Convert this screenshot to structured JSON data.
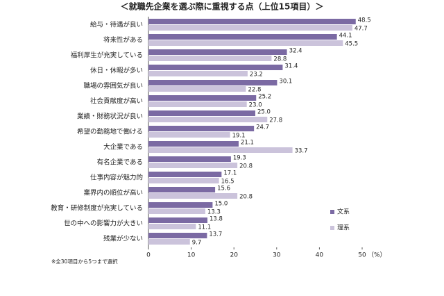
{
  "chart_data": {
    "type": "hbar",
    "title": "＜就職先企業を選ぶ際に重視する点（上位15項目）＞",
    "categories": [
      "給与・待遇が良い",
      "将来性がある",
      "福利厚生が充実している",
      "休日・休暇が多い",
      "職場の雰囲気が良い",
      "社会貢献度が高い",
      "業績・財務状況が良い",
      "希望の勤務地で働ける",
      "大企業である",
      "有名企業である",
      "仕事内容が魅力的",
      "業界内の順位が高い",
      "教育・研修制度が充実している",
      "世の中への影響力が大きい",
      "残業が少ない"
    ],
    "series": [
      {
        "name": "文系",
        "color": "#7b6aa3",
        "values": [
          48.5,
          44.1,
          32.4,
          31.4,
          30.1,
          25.2,
          25.0,
          24.7,
          21.1,
          19.3,
          17.1,
          15.6,
          15.0,
          13.8,
          13.7
        ],
        "value_labels": [
          "48.5",
          "44.1",
          "32.4",
          "31.4",
          "30.1",
          "25.2",
          "25.0",
          "24.7",
          "21.1",
          "19.3",
          "17.1",
          "15.6",
          "15.0",
          "13.8",
          "13.7"
        ]
      },
      {
        "name": "理系",
        "color": "#cbc3db",
        "values": [
          47.7,
          45.5,
          28.8,
          23.2,
          22.8,
          23.0,
          27.8,
          19.1,
          33.7,
          20.8,
          16.5,
          20.8,
          13.3,
          11.1,
          9.7
        ],
        "value_labels": [
          "47.7",
          "45.5",
          "28.8",
          "23.2",
          "22.8",
          "23.0",
          "27.8",
          "19.1",
          "33.7",
          "20.8",
          "16.5",
          "20.8",
          "13.3",
          "11.1",
          "9.7"
        ]
      }
    ],
    "xlim": [
      0,
      50
    ],
    "xticks": [
      0,
      10,
      20,
      30,
      40,
      50
    ],
    "x_label": "（%）",
    "note": "※全30項目から5つまで選択"
  }
}
